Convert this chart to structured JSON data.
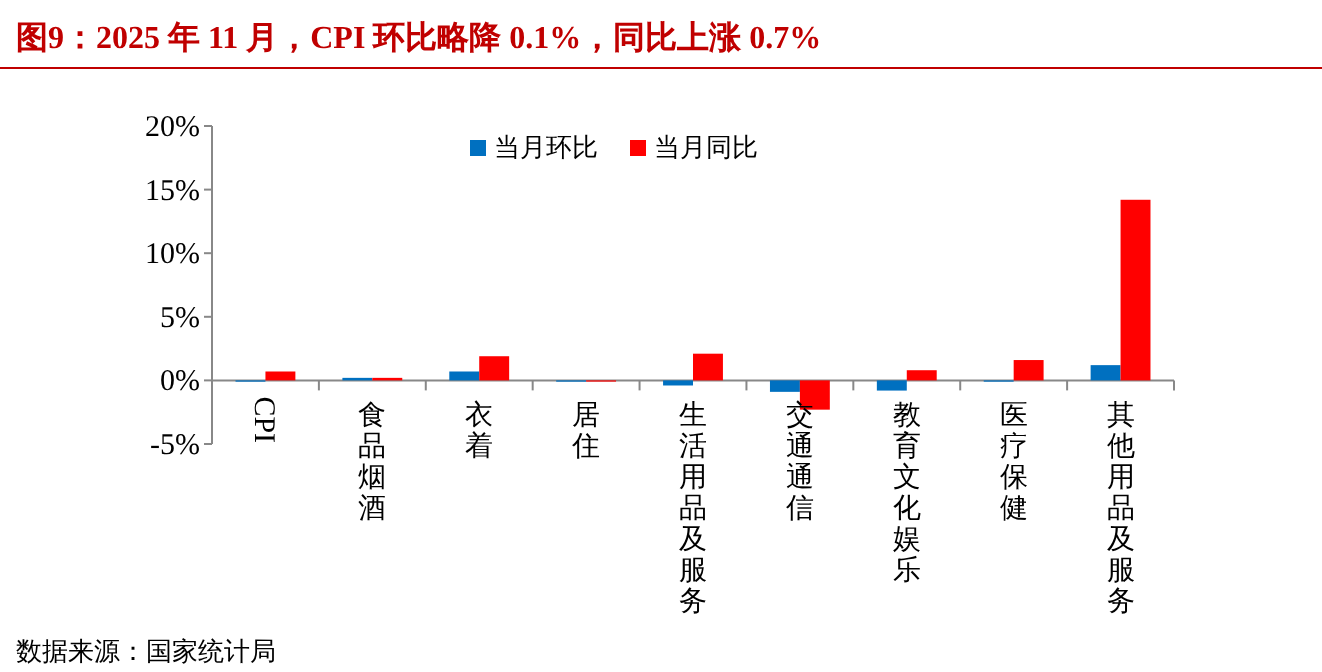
{
  "chart_data": {
    "type": "bar",
    "title": "图9：2025 年 11 月，CPI 环比略降 0.1%，同比上涨 0.7%",
    "categories": [
      "CPI",
      "食品烟酒",
      "衣着",
      "居住",
      "生活用品及服务",
      "交通通信",
      "教育文化娱乐",
      "医疗保健",
      "其他用品及服务"
    ],
    "series": [
      {
        "name": "当月环比",
        "color": "#0070c0",
        "values": [
          -0.1,
          0.2,
          0.7,
          -0.1,
          -0.4,
          -0.9,
          -0.8,
          -0.1,
          1.2
        ]
      },
      {
        "name": "当月同比",
        "color": "#ff0000",
        "values": [
          0.7,
          0.2,
          1.9,
          0,
          2.1,
          -2.3,
          0.8,
          1.6,
          14.2
        ]
      }
    ],
    "ylim": [
      -5,
      20
    ],
    "yticks": [
      {
        "value": -5,
        "label": "-5%"
      },
      {
        "value": 0,
        "label": "0%"
      },
      {
        "value": 5,
        "label": "5%"
      },
      {
        "value": 10,
        "label": "10%"
      },
      {
        "value": 15,
        "label": "15%"
      },
      {
        "value": 20,
        "label": "20%"
      }
    ],
    "grid": false,
    "legend": "top",
    "annotations": [
      "数据来源：国家统计局"
    ]
  }
}
